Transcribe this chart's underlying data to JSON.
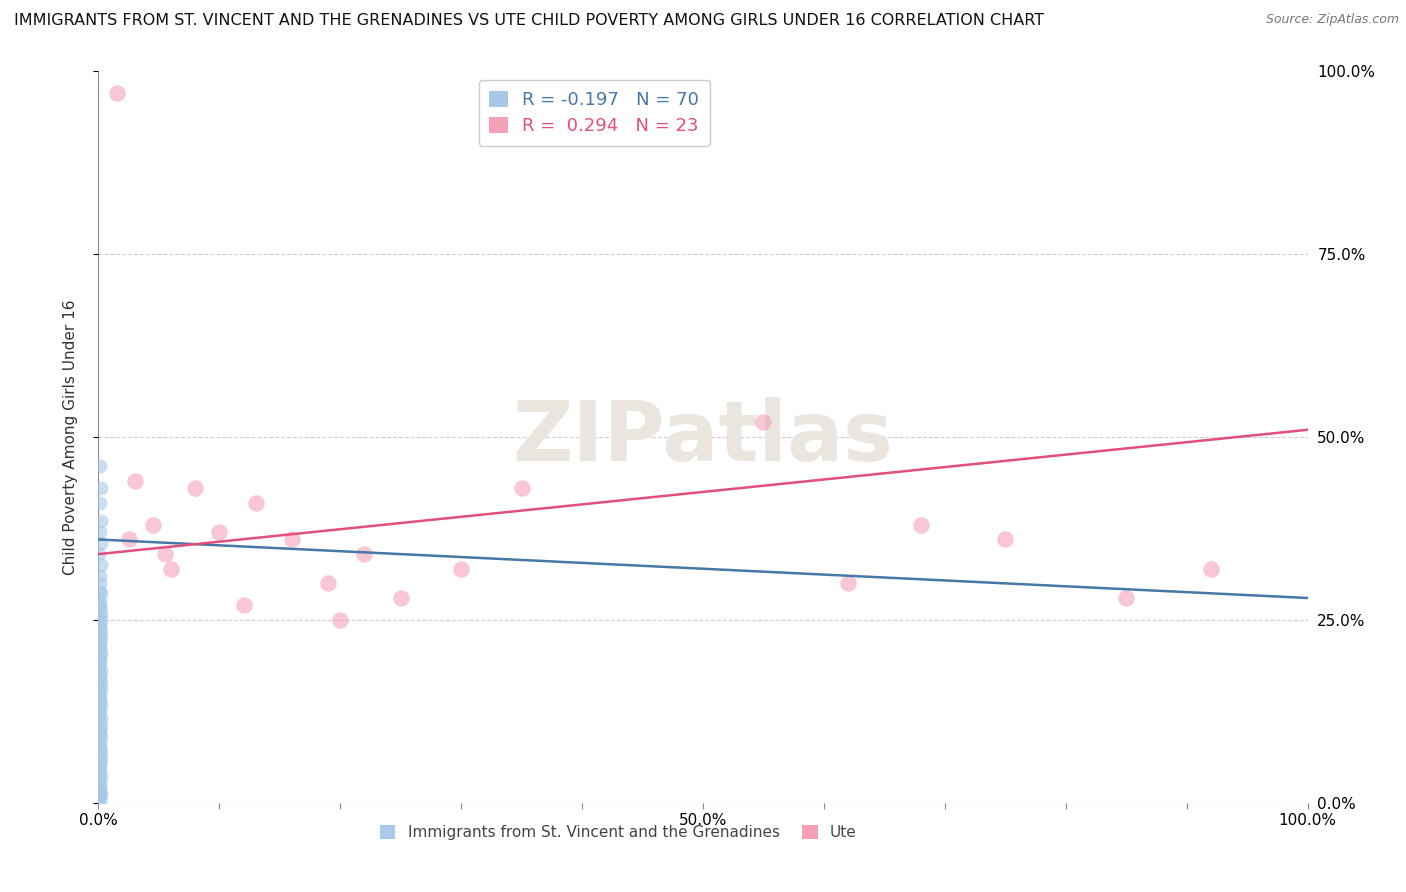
{
  "title": "IMMIGRANTS FROM ST. VINCENT AND THE GRENADINES VS UTE CHILD POVERTY AMONG GIRLS UNDER 16 CORRELATION CHART",
  "source": "Source: ZipAtlas.com",
  "ylabel": "Child Poverty Among Girls Under 16",
  "R_blue": -0.197,
  "N_blue": 70,
  "R_pink": 0.294,
  "N_pink": 23,
  "blue_color": "#a8c8e8",
  "pink_color": "#f4a0b8",
  "blue_line_color": "#4878a8",
  "pink_line_color": "#e0507a",
  "legend_label_blue": "Immigrants from St. Vincent and the Grenadines",
  "legend_label_pink": "Ute",
  "blue_scatter_x": [
    0.15,
    0.18,
    0.12,
    0.2,
    0.1,
    0.22,
    0.08,
    0.25,
    0.14,
    0.16,
    0.11,
    0.19,
    0.09,
    0.17,
    0.13,
    0.21,
    0.07,
    0.23,
    0.15,
    0.12,
    0.18,
    0.1,
    0.2,
    0.14,
    0.16,
    0.09,
    0.22,
    0.11,
    0.17,
    0.13,
    0.08,
    0.19,
    0.15,
    0.12,
    0.21,
    0.1,
    0.18,
    0.14,
    0.16,
    0.09,
    0.23,
    0.11,
    0.17,
    0.13,
    0.2,
    0.08,
    0.22,
    0.15,
    0.12,
    0.19,
    0.1,
    0.16,
    0.14,
    0.21,
    0.09,
    0.18,
    0.13,
    0.11,
    0.17,
    0.15,
    0.2,
    0.12,
    0.14,
    0.1,
    0.16,
    0.09,
    0.18,
    0.13,
    0.11,
    0.15
  ],
  "blue_scatter_y": [
    46.0,
    43.0,
    41.0,
    38.5,
    37.0,
    35.5,
    34.0,
    32.5,
    31.0,
    30.0,
    29.0,
    28.5,
    27.5,
    27.0,
    26.5,
    26.0,
    25.5,
    25.0,
    24.5,
    24.0,
    23.5,
    23.0,
    22.5,
    22.0,
    21.5,
    21.0,
    20.5,
    20.0,
    19.5,
    19.0,
    18.5,
    18.0,
    17.5,
    17.0,
    16.5,
    16.0,
    15.5,
    15.0,
    14.5,
    14.0,
    13.5,
    13.0,
    12.5,
    12.0,
    11.5,
    11.0,
    10.5,
    10.0,
    9.5,
    9.0,
    8.5,
    8.0,
    7.5,
    7.0,
    6.5,
    6.0,
    5.5,
    5.0,
    4.5,
    4.0,
    3.5,
    3.0,
    2.5,
    2.0,
    1.8,
    1.5,
    1.2,
    1.0,
    0.7,
    0.3
  ],
  "pink_scatter_x": [
    1.5,
    3.0,
    4.5,
    6.0,
    8.0,
    10.0,
    13.0,
    16.0,
    19.0,
    22.0,
    25.0,
    30.0,
    35.0,
    55.0,
    62.0,
    68.0,
    75.0,
    85.0,
    92.0,
    2.5,
    5.5,
    12.0,
    20.0
  ],
  "pink_scatter_y": [
    97.0,
    44.0,
    38.0,
    32.0,
    43.0,
    37.0,
    41.0,
    36.0,
    30.0,
    34.0,
    28.0,
    32.0,
    43.0,
    52.0,
    30.0,
    38.0,
    36.0,
    28.0,
    32.0,
    36.0,
    34.0,
    27.0,
    25.0
  ],
  "pink_line_start_y": 34.0,
  "pink_line_end_y": 51.0,
  "blue_line_start_y": 36.0,
  "blue_line_end_y": 28.0,
  "xlim": [
    0,
    100
  ],
  "ylim": [
    0,
    100
  ],
  "x_major_ticks": [
    0,
    10,
    20,
    30,
    40,
    50,
    60,
    70,
    80,
    90,
    100
  ],
  "y_major_ticks": [
    0,
    25,
    50,
    75,
    100
  ],
  "x_tick_labels": [
    "0.0%",
    "",
    "",
    "",
    "",
    "50.0%",
    "",
    "",
    "",
    "",
    "100.0%"
  ],
  "y_tick_labels_right": [
    "0.0%",
    "25.0%",
    "50.0%",
    "75.0%",
    "100.0%"
  ],
  "marker_size": 100,
  "alpha_scatter": 0.6,
  "grid_color": "#d0d0d0",
  "background_color": "#ffffff",
  "legend_text_blue_color": "#4878a8",
  "legend_text_pink_color": "#e0507a",
  "legend_n_blue_color": "#2060d0",
  "legend_n_pink_color": "#2060d0"
}
